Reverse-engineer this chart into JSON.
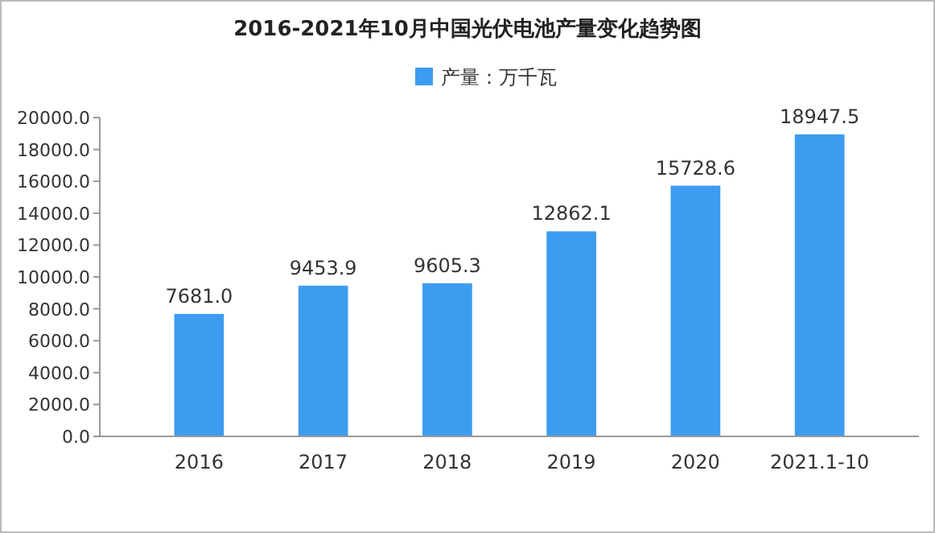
{
  "chart_data": {
    "type": "bar",
    "title": "2016-2021年10月中国光伏电池产量变化趋势图",
    "categories": [
      "2016",
      "2017",
      "2018",
      "2019",
      "2020",
      "2021.1-10"
    ],
    "series": [
      {
        "name": "产量：万千瓦",
        "color": "#3d9cf0",
        "values": [
          7681.0,
          9453.9,
          9605.3,
          12862.1,
          15728.6,
          18947.5
        ],
        "value_labels": [
          "7681.0",
          "9453.9",
          "9605.3",
          "12862.1",
          "15728.6",
          "18947.5"
        ]
      }
    ],
    "ylim": [
      0,
      20000
    ],
    "yticks": [
      {
        "value": 0,
        "label": "0.0"
      },
      {
        "value": 2000,
        "label": "2000.0"
      },
      {
        "value": 4000,
        "label": "4000.0"
      },
      {
        "value": 6000,
        "label": "6000.0"
      },
      {
        "value": 8000,
        "label": "8000.0"
      },
      {
        "value": 10000,
        "label": "10000.0"
      },
      {
        "value": 12000,
        "label": "12000.0"
      },
      {
        "value": 14000,
        "label": "14000.0"
      },
      {
        "value": 16000,
        "label": "16000.0"
      },
      {
        "value": 18000,
        "label": "18000.0"
      },
      {
        "value": 20000,
        "label": "20000.0"
      }
    ],
    "grid": false,
    "legend": "top"
  }
}
